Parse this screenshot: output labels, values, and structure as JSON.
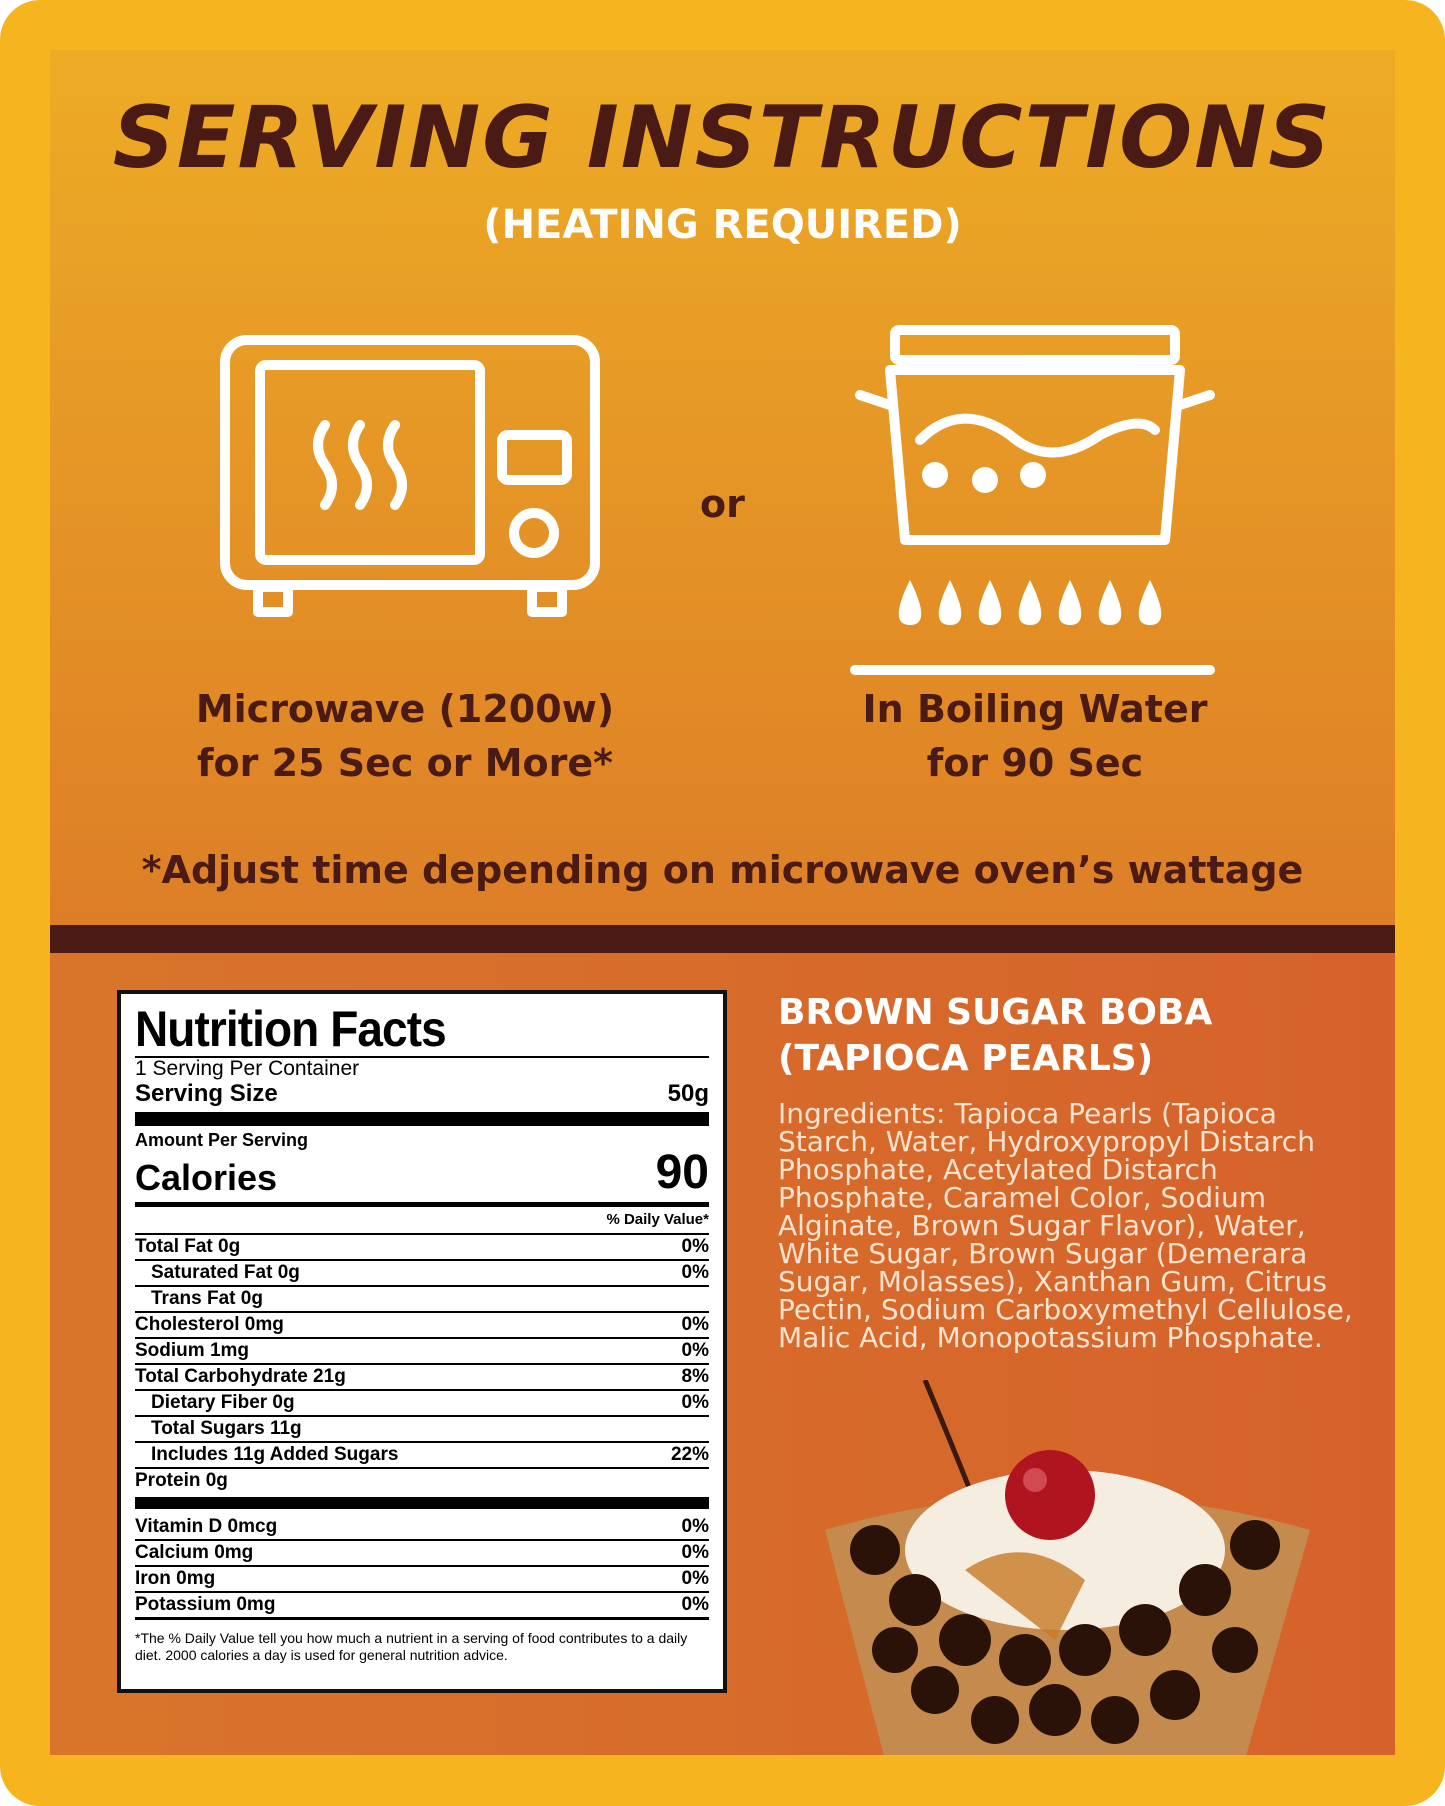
{
  "header": {
    "title": "SERVING INSTRUCTIONS",
    "subtitle": "(HEATING REQUIRED)"
  },
  "methods": [
    {
      "icon": "microwave-icon",
      "line1": "Microwave (1200w)",
      "line2": "for 25 Sec or More*"
    },
    {
      "icon": "boiling-pot-icon",
      "line1": "In Boiling Water",
      "line2": "for 90 Sec"
    }
  ],
  "or_label": "or",
  "note": "*Adjust time depending on microwave oven’s wattage",
  "nutrition": {
    "title": "Nutrition Facts",
    "servings": "1 Serving Per Container",
    "serving_size_label": "Serving Size",
    "serving_size": "50g",
    "amount_label": "Amount Per Serving",
    "calories_label": "Calories",
    "calories": "90",
    "dv_header": "% Daily Value*",
    "rows": [
      {
        "label": "Total Fat 0g",
        "dv": "0%"
      },
      {
        "label": "Saturated Fat 0g",
        "dv": "0%"
      },
      {
        "label": "Trans Fat 0g",
        "dv": ""
      },
      {
        "label": "Cholesterol 0mg",
        "dv": "0%"
      },
      {
        "label": "Sodium 1mg",
        "dv": "0%"
      },
      {
        "label": "Total Carbohydrate 21g",
        "dv": "8%"
      },
      {
        "label": "Dietary Fiber 0g",
        "dv": "0%"
      },
      {
        "label": "Total Sugars 11g",
        "dv": ""
      },
      {
        "label": "Includes 11g Added Sugars",
        "dv": "22%"
      },
      {
        "label": "Protein 0g",
        "dv": ""
      }
    ],
    "vitamins": [
      {
        "label": "Vitamin D 0mcg",
        "dv": "0%"
      },
      {
        "label": "Calcium 0mg",
        "dv": "0%"
      },
      {
        "label": "Iron 0mg",
        "dv": "0%"
      },
      {
        "label": "Potassium 0mg",
        "dv": "0%"
      }
    ],
    "footnote": "*The % Daily Value tell you how much a nutrient in a serving of food contributes to a daily diet. 2000 calories a day is used for general nutrition advice."
  },
  "product": {
    "name_line1": "BROWN SUGAR BOBA",
    "name_line2": "(TAPIOCA PEARLS)",
    "ingredients_label": "Ingredients:",
    "ingredients": "Tapioca Pearls (Tapioca Starch, Water, Hydroxypropyl Distarch Phosphate, Acetylated Distarch Phosphate, Caramel Color, Sodium Alginate, Brown Sugar Flavor), Water, White Sugar, Brown Sugar (Demerara Sugar, Molasses), Xanthan Gum, Citrus Pectin, Sodium Carboxymethyl Cellulose, Malic Acid, Monopotassium Phosphate."
  },
  "colors": {
    "border": "#F6B51E",
    "brown": "#4A1A14",
    "top_start": "#EDAC25",
    "top_end": "#DD7E27",
    "bottom": "#D5622B"
  }
}
